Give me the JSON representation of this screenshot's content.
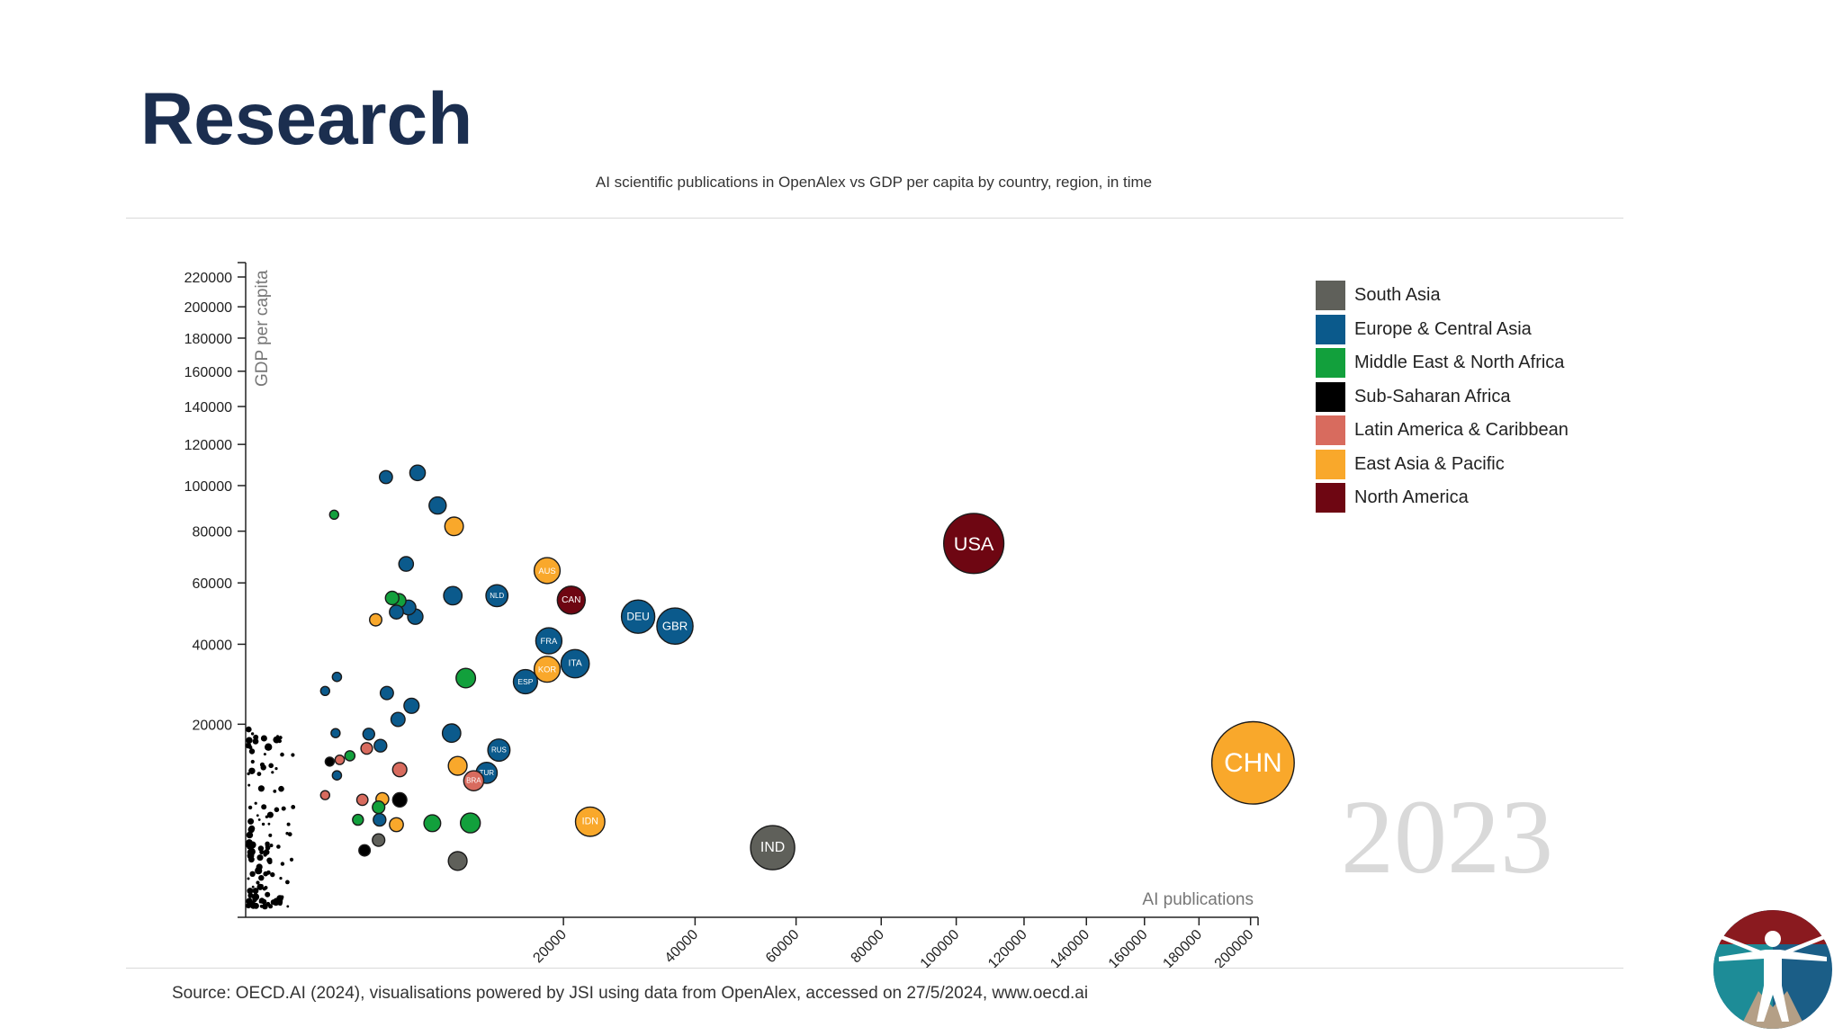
{
  "page": {
    "title": "Research",
    "source": "Source: OECD.AI (2024), visualisations powered by JSI using data from OpenAlex, accessed on 27/5/2024, www.oecd.ai"
  },
  "chart_data": {
    "type": "scatter",
    "title": "AI scientific publications in OpenAlex vs GDP per capita by country, region, in time",
    "xlabel": "AI publications",
    "ylabel": "GDP per capita",
    "year": "2023",
    "x_scale": "sqrt",
    "y_scale": "sqrt",
    "xlim": [
      0,
      203000
    ],
    "ylim": [
      0,
      230000
    ],
    "x_ticks": [
      20000,
      40000,
      60000,
      80000,
      100000,
      120000,
      140000,
      160000,
      180000,
      200000
    ],
    "y_ticks": [
      20000,
      40000,
      60000,
      80000,
      100000,
      120000,
      140000,
      160000,
      180000,
      200000,
      220000
    ],
    "grid": false,
    "legend_position": "top-right",
    "regions": [
      {
        "id": "sas",
        "name": "South Asia",
        "color": "#5f605a"
      },
      {
        "id": "eca",
        "name": "Europe & Central Asia",
        "color": "#0b5a8c"
      },
      {
        "id": "mna",
        "name": "Middle East & North Africa",
        "color": "#12a03c"
      },
      {
        "id": "ssa",
        "name": "Sub-Saharan Africa",
        "color": "#000000"
      },
      {
        "id": "lac",
        "name": "Latin America & Caribbean",
        "color": "#d86b5e"
      },
      {
        "id": "eap",
        "name": "East Asia & Pacific",
        "color": "#f9a82b"
      },
      {
        "id": "nam",
        "name": "North America",
        "color": "#6e0612"
      }
    ],
    "points": [
      {
        "label": "USA",
        "region": "nam",
        "x": 105000,
        "y": 75000
      },
      {
        "label": "CHN",
        "region": "eap",
        "x": 201000,
        "y": 12800
      },
      {
        "label": "IND",
        "region": "sas",
        "x": 55000,
        "y": 2600
      },
      {
        "label": "GBR",
        "region": "eca",
        "x": 36500,
        "y": 45500
      },
      {
        "label": "DEU",
        "region": "eca",
        "x": 30500,
        "y": 48500
      },
      {
        "label": "CAN",
        "region": "nam",
        "x": 21000,
        "y": 54000
      },
      {
        "label": "AUS",
        "region": "eap",
        "x": 18000,
        "y": 64500
      },
      {
        "label": "FRA",
        "region": "eca",
        "x": 18200,
        "y": 41000
      },
      {
        "label": "ITA",
        "region": "eca",
        "x": 21500,
        "y": 34500
      },
      {
        "label": "KOR",
        "region": "eap",
        "x": 18000,
        "y": 33000
      },
      {
        "label": "ESP",
        "region": "eca",
        "x": 15500,
        "y": 29800
      },
      {
        "label": "NLD",
        "region": "eca",
        "x": 12500,
        "y": 55500
      },
      {
        "label": "IDN",
        "region": "eap",
        "x": 23500,
        "y": 4900
      },
      {
        "label": "RUS",
        "region": "eca",
        "x": 12700,
        "y": 15000
      },
      {
        "label": "TUR",
        "region": "eca",
        "x": 11500,
        "y": 11200
      },
      {
        "label": "BRA",
        "region": "lac",
        "x": 10300,
        "y": 10000
      },
      {
        "label": "",
        "region": "eca",
        "x": 7300,
        "y": 91000
      },
      {
        "label": "",
        "region": "eca",
        "x": 5850,
        "y": 106000
      },
      {
        "label": "",
        "region": "eca",
        "x": 3900,
        "y": 104000
      },
      {
        "label": "",
        "region": "eap",
        "x": 8600,
        "y": 82000
      },
      {
        "label": "",
        "region": "eca",
        "x": 5100,
        "y": 67000
      },
      {
        "label": "",
        "region": "eca",
        "x": 8500,
        "y": 55500
      },
      {
        "label": "",
        "region": "eca",
        "x": 5250,
        "y": 51500
      },
      {
        "label": "",
        "region": "eca",
        "x": 5700,
        "y": 48500
      },
      {
        "label": "",
        "region": "eca",
        "x": 4500,
        "y": 50000
      },
      {
        "label": "",
        "region": "mna",
        "x": 4250,
        "y": 54700
      },
      {
        "label": "",
        "region": "mna",
        "x": 4650,
        "y": 53800
      },
      {
        "label": "",
        "region": "eap",
        "x": 3350,
        "y": 47500
      },
      {
        "label": "",
        "region": "mna",
        "x": 9600,
        "y": 30700
      },
      {
        "label": "",
        "region": "eca",
        "x": 3950,
        "y": 27000
      },
      {
        "label": "",
        "region": "eca",
        "x": 5450,
        "y": 24000
      },
      {
        "label": "",
        "region": "eca",
        "x": 4600,
        "y": 21000
      },
      {
        "label": "",
        "region": "eca",
        "x": 8400,
        "y": 18200
      },
      {
        "label": "",
        "region": "eca",
        "x": 3000,
        "y": 18000
      },
      {
        "label": "",
        "region": "eca",
        "x": 3600,
        "y": 15800
      },
      {
        "label": "",
        "region": "lac",
        "x": 2900,
        "y": 15300
      },
      {
        "label": "",
        "region": "lac",
        "x": 4700,
        "y": 11700
      },
      {
        "label": "",
        "region": "eap",
        "x": 8900,
        "y": 12300
      },
      {
        "label": "",
        "region": "mna",
        "x": 6900,
        "y": 4750
      },
      {
        "label": "",
        "region": "mna",
        "x": 10000,
        "y": 4780
      },
      {
        "label": "",
        "region": "ssa",
        "x": 4700,
        "y": 7400
      },
      {
        "label": "",
        "region": "eap",
        "x": 3700,
        "y": 7500
      },
      {
        "label": "",
        "region": "lac",
        "x": 2700,
        "y": 7400
      },
      {
        "label": "",
        "region": "mna",
        "x": 3500,
        "y": 6500
      },
      {
        "label": "",
        "region": "eca",
        "x": 3550,
        "y": 5100
      },
      {
        "label": "",
        "region": "eap",
        "x": 4500,
        "y": 4600
      },
      {
        "label": "",
        "region": "sas",
        "x": 3500,
        "y": 3200
      },
      {
        "label": "",
        "region": "sas",
        "x": 8900,
        "y": 1700
      },
      {
        "label": "",
        "region": "ssa",
        "x": 2800,
        "y": 2400
      },
      {
        "label": "",
        "region": "mna",
        "x": 2150,
        "y": 14000
      },
      {
        "label": "",
        "region": "mna",
        "x": 1550,
        "y": 87000
      },
      {
        "label": "",
        "region": "eca",
        "x": 1650,
        "y": 31000
      },
      {
        "label": "",
        "region": "ssa",
        "x": 1400,
        "y": 13000
      },
      {
        "label": "",
        "region": "lac",
        "x": 1750,
        "y": 13300
      },
      {
        "label": "",
        "region": "eca",
        "x": 1650,
        "y": 10800
      },
      {
        "label": "",
        "region": "lac",
        "x": 1250,
        "y": 8000
      },
      {
        "label": "",
        "region": "eca",
        "x": 1600,
        "y": 18200
      },
      {
        "label": "",
        "region": "eca",
        "x": 1250,
        "y": 27500
      },
      {
        "label": "",
        "region": "mna",
        "x": 2500,
        "y": 5100
      }
    ]
  }
}
